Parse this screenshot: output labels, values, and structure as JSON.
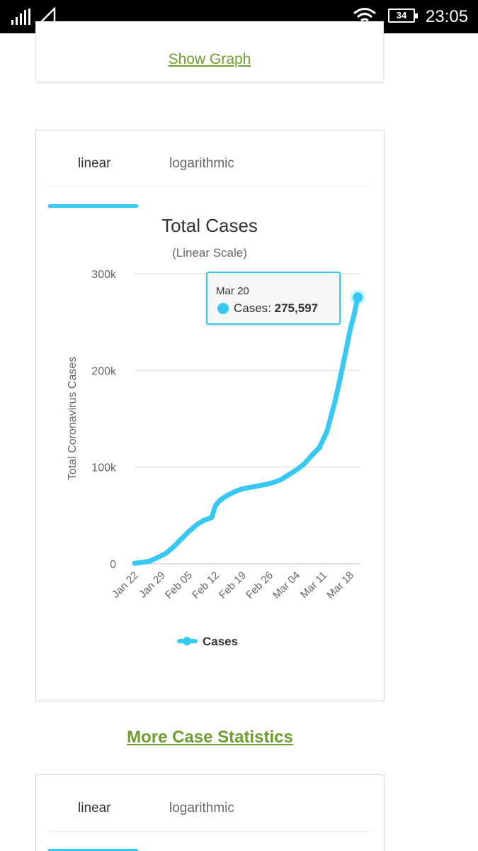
{
  "status_bar": {
    "time": "23:05",
    "battery": "34",
    "icons": [
      "signal-icon",
      "no-sim-icon",
      "wifi-icon",
      "battery-icon"
    ]
  },
  "top_card": {
    "show_graph": "Show Graph"
  },
  "chart_card": {
    "tabs": [
      {
        "label": "linear",
        "active": true
      },
      {
        "label": "logarithmic",
        "active": false
      }
    ],
    "tooltip": {
      "date": "Mar 20",
      "series": "Cases",
      "value": "275,597"
    }
  },
  "more_stats": {
    "label": "More Case Statistics"
  },
  "bottom_card": {
    "tabs": [
      {
        "label": "linear",
        "active": true
      },
      {
        "label": "logarithmic",
        "active": false
      }
    ]
  },
  "colors": {
    "accent": "#38c8f4",
    "link_green": "#6e9e2f"
  },
  "chart_data": {
    "type": "line",
    "title": "Total Cases",
    "subtitle": "(Linear Scale)",
    "xlabel": "",
    "ylabel": "Total Coronavirus Cases",
    "ylim": [
      0,
      300000
    ],
    "y_ticks": [
      0,
      100000,
      200000,
      300000
    ],
    "y_tick_labels": [
      "0",
      "100k",
      "200k",
      "300k"
    ],
    "x_tick_labels": [
      "Jan 22",
      "Jan 29",
      "Feb 05",
      "Feb 12",
      "Feb 19",
      "Feb 26",
      "Mar 04",
      "Mar 11",
      "Mar 18"
    ],
    "x_tick_days": [
      0,
      7,
      14,
      21,
      28,
      35,
      42,
      49,
      56
    ],
    "legend": "Cases",
    "series": [
      {
        "name": "Cases",
        "x_days": [
          0,
          2,
          4,
          6,
          8,
          10,
          12,
          14,
          16,
          18,
          20,
          21,
          22,
          23,
          24,
          26,
          28,
          30,
          32,
          34,
          36,
          38,
          40,
          42,
          44,
          46,
          48,
          50,
          51,
          52,
          53,
          54,
          55,
          56,
          57,
          58
        ],
        "values": [
          500,
          1500,
          2800,
          6500,
          10500,
          17000,
          25000,
          33000,
          40000,
          45000,
          47500,
          60000,
          65000,
          68000,
          70500,
          74500,
          77500,
          79000,
          80500,
          82000,
          84000,
          87000,
          92000,
          97000,
          103000,
          112000,
          120000,
          137000,
          152000,
          167000,
          184000,
          203000,
          222000,
          242000,
          257000,
          275597
        ]
      }
    ],
    "highlight": {
      "x_day": 58,
      "label": "Mar 20",
      "value": 275597
    }
  }
}
